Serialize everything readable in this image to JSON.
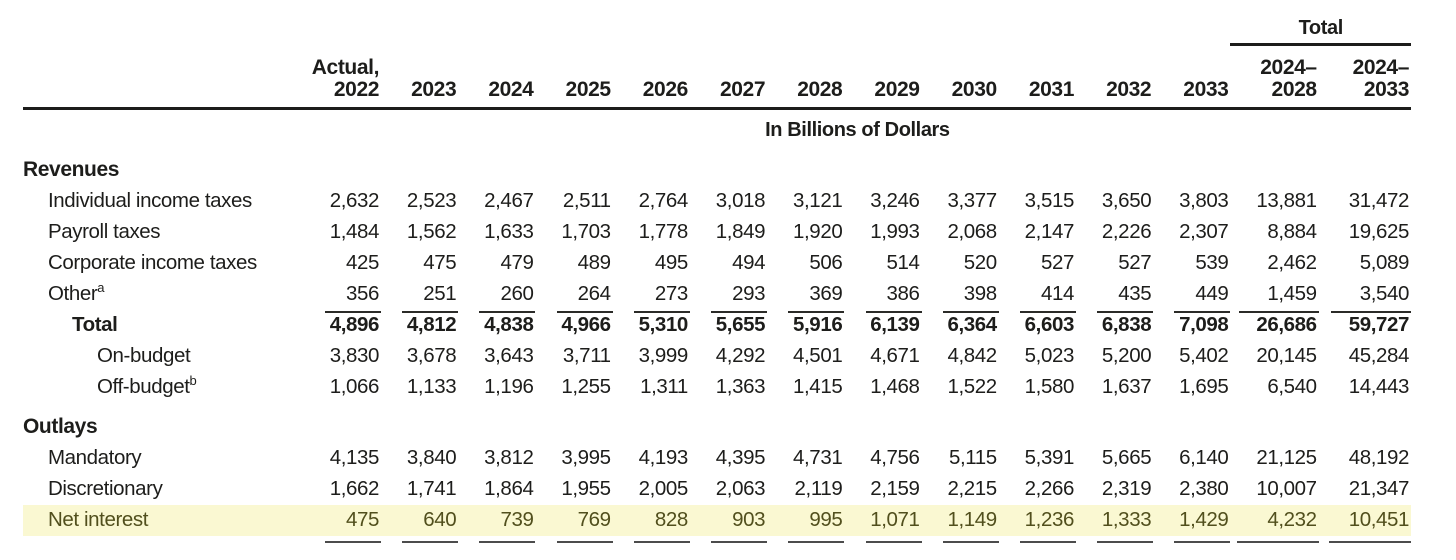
{
  "header": {
    "total_group_label": "Total",
    "units_label": "In Billions of Dollars"
  },
  "columns": [
    {
      "top": "Actual,",
      "year": "2022",
      "group": "year"
    },
    {
      "top": "",
      "year": "2023",
      "group": "year"
    },
    {
      "top": "",
      "year": "2024",
      "group": "year"
    },
    {
      "top": "",
      "year": "2025",
      "group": "year"
    },
    {
      "top": "",
      "year": "2026",
      "group": "year"
    },
    {
      "top": "",
      "year": "2027",
      "group": "year"
    },
    {
      "top": "",
      "year": "2028",
      "group": "year"
    },
    {
      "top": "",
      "year": "2029",
      "group": "year"
    },
    {
      "top": "",
      "year": "2030",
      "group": "year"
    },
    {
      "top": "",
      "year": "2031",
      "group": "year"
    },
    {
      "top": "",
      "year": "2032",
      "group": "year"
    },
    {
      "top": "",
      "year": "2033",
      "group": "year"
    },
    {
      "top": "2024–",
      "year": "2028",
      "group": "total"
    },
    {
      "top": "2024–",
      "year": "2033",
      "group": "total"
    }
  ],
  "sections": [
    {
      "heading": "Revenues",
      "rows": [
        {
          "label": "Individual income taxes",
          "sup": "",
          "indent": 1,
          "bold": false,
          "highlight": false,
          "rule_below": "",
          "values": [
            "2,632",
            "2,523",
            "2,467",
            "2,511",
            "2,764",
            "3,018",
            "3,121",
            "3,246",
            "3,377",
            "3,515",
            "3,650",
            "3,803",
            "13,881",
            "31,472"
          ]
        },
        {
          "label": "Payroll taxes",
          "sup": "",
          "indent": 1,
          "bold": false,
          "highlight": false,
          "rule_below": "",
          "values": [
            "1,484",
            "1,562",
            "1,633",
            "1,703",
            "1,778",
            "1,849",
            "1,920",
            "1,993",
            "2,068",
            "2,147",
            "2,226",
            "2,307",
            "8,884",
            "19,625"
          ]
        },
        {
          "label": "Corporate income taxes",
          "sup": "",
          "indent": 1,
          "bold": false,
          "highlight": false,
          "rule_below": "",
          "values": [
            "425",
            "475",
            "479",
            "489",
            "495",
            "494",
            "506",
            "514",
            "520",
            "527",
            "527",
            "539",
            "2,462",
            "5,089"
          ]
        },
        {
          "label": "Other",
          "sup": "a",
          "indent": 1,
          "bold": false,
          "highlight": false,
          "rule_below": "dark",
          "values": [
            "356",
            "251",
            "260",
            "264",
            "273",
            "293",
            "369",
            "386",
            "398",
            "414",
            "435",
            "449",
            "1,459",
            "3,540"
          ]
        },
        {
          "label": "Total",
          "sup": "",
          "indent": 2,
          "bold": true,
          "highlight": false,
          "rule_below": "",
          "values": [
            "4,896",
            "4,812",
            "4,838",
            "4,966",
            "5,310",
            "5,655",
            "5,916",
            "6,139",
            "6,364",
            "6,603",
            "6,838",
            "7,098",
            "26,686",
            "59,727"
          ]
        },
        {
          "label": "On-budget",
          "sup": "",
          "indent": 3,
          "bold": false,
          "highlight": false,
          "rule_below": "",
          "values": [
            "3,830",
            "3,678",
            "3,643",
            "3,711",
            "3,999",
            "4,292",
            "4,501",
            "4,671",
            "4,842",
            "5,023",
            "5,200",
            "5,402",
            "20,145",
            "45,284"
          ]
        },
        {
          "label": "Off-budget",
          "sup": "b",
          "indent": 3,
          "bold": false,
          "highlight": false,
          "rule_below": "",
          "values": [
            "1,066",
            "1,133",
            "1,196",
            "1,255",
            "1,311",
            "1,363",
            "1,415",
            "1,468",
            "1,522",
            "1,580",
            "1,637",
            "1,695",
            "6,540",
            "14,443"
          ]
        }
      ]
    },
    {
      "heading": "Outlays",
      "rows": [
        {
          "label": "Mandatory",
          "sup": "",
          "indent": 1,
          "bold": false,
          "highlight": false,
          "rule_below": "",
          "values": [
            "4,135",
            "3,840",
            "3,812",
            "3,995",
            "4,193",
            "4,395",
            "4,731",
            "4,756",
            "5,115",
            "5,391",
            "5,665",
            "6,140",
            "21,125",
            "48,192"
          ]
        },
        {
          "label": "Discretionary",
          "sup": "",
          "indent": 1,
          "bold": false,
          "highlight": false,
          "rule_below": "",
          "values": [
            "1,662",
            "1,741",
            "1,864",
            "1,955",
            "2,005",
            "2,063",
            "2,119",
            "2,159",
            "2,215",
            "2,266",
            "2,319",
            "2,380",
            "10,007",
            "21,347"
          ]
        },
        {
          "label": "Net interest",
          "sup": "",
          "indent": 1,
          "bold": false,
          "highlight": true,
          "rule_below": "bottom",
          "values": [
            "475",
            "640",
            "739",
            "769",
            "828",
            "903",
            "995",
            "1,071",
            "1,149",
            "1,236",
            "1,333",
            "1,429",
            "4,232",
            "10,451"
          ]
        }
      ]
    }
  ],
  "colors": {
    "ink": "#1d1d1b",
    "highlight_background": "#FAF8D2",
    "highlight_text": "#514F1D",
    "bottom_rule": "#4c4c4c"
  }
}
